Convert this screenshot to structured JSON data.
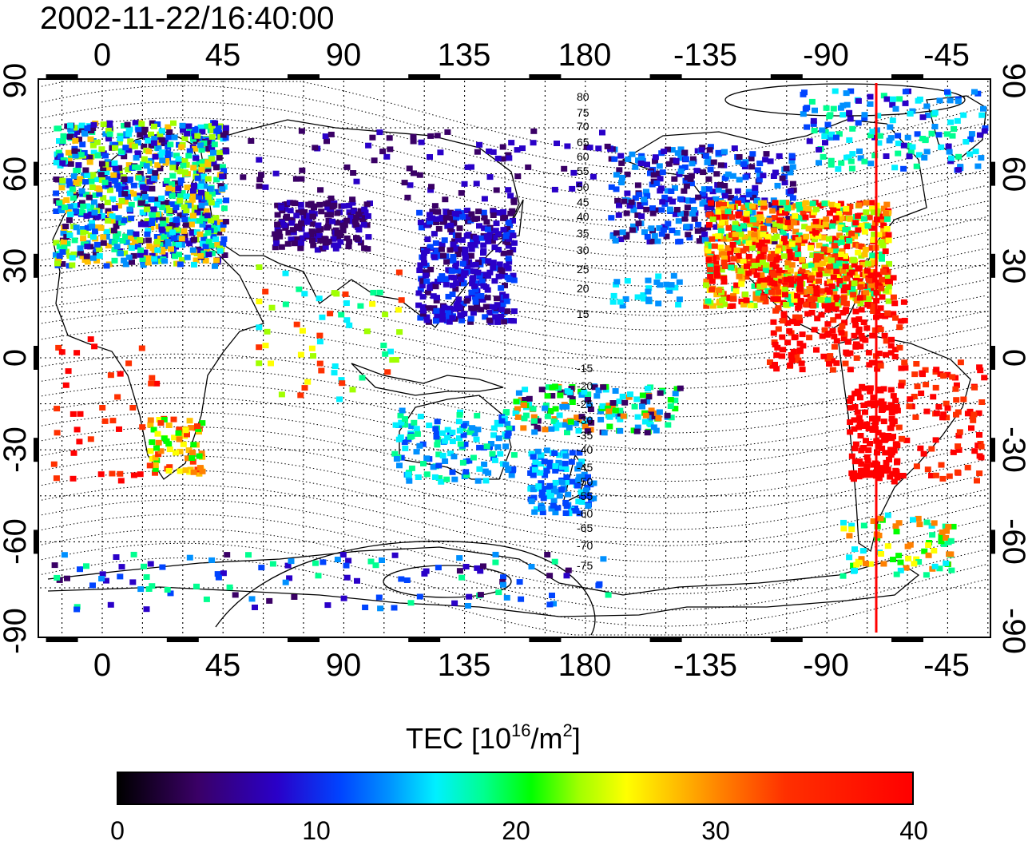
{
  "title": "2002-11-22/16:40:00",
  "map": {
    "longitude_ticks": [
      "0",
      "45",
      "90",
      "135",
      "180",
      "-135",
      "-90",
      "-45"
    ],
    "latitude_ticks": [
      "90",
      "60",
      "30",
      "0",
      "-30",
      "-60",
      "-90"
    ],
    "magnetic_latitude_labels_north": [
      "80",
      "75",
      "70",
      "65",
      "60",
      "55",
      "50",
      "45",
      "40",
      "35",
      "30",
      "25",
      "20",
      "15"
    ],
    "magnetic_latitude_labels_south": [
      "-15",
      "-20",
      "-25",
      "-30",
      "-35",
      "-40",
      "-45",
      "-50",
      "-55",
      "-60",
      "-65",
      "-70",
      "-75"
    ],
    "marker_line_color": "#ff0000"
  },
  "colorbar": {
    "title_prefix": "TEC  [10",
    "title_exp1": "16",
    "title_mid": "/m",
    "title_exp2": "2",
    "title_suffix": "]",
    "tick_labels": [
      "0",
      "10",
      "20",
      "30",
      "40"
    ],
    "range": [
      0,
      40
    ]
  }
}
